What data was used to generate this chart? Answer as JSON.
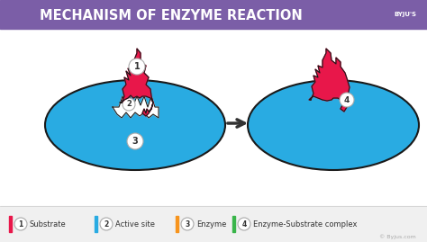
{
  "title": "MECHANISM OF ENZYME REACTION",
  "title_color": "#ffffff",
  "title_bg_color": "#7b5ea7",
  "bg_color": "#ffffff",
  "arrow_color": "#333333",
  "legend_items": [
    {
      "num": "1",
      "label": "Substrate",
      "color": "#e8174a"
    },
    {
      "num": "2",
      "label": "Active site",
      "color": "#29abe2"
    },
    {
      "num": "3",
      "label": "Enzyme",
      "color": "#f7941d"
    },
    {
      "num": "4",
      "label": "Enzyme-Substrate complex",
      "color": "#39b54a"
    }
  ],
  "legend_bg": "#f0f0f0",
  "enzyme_color": "#29abe2",
  "enzyme_border": "#1a1a1a",
  "substrate_color": "#e8174a",
  "active_site_color": "#ffffff",
  "logo_bg": "#7b5ea7",
  "copyright_text": "© Byjus.com"
}
